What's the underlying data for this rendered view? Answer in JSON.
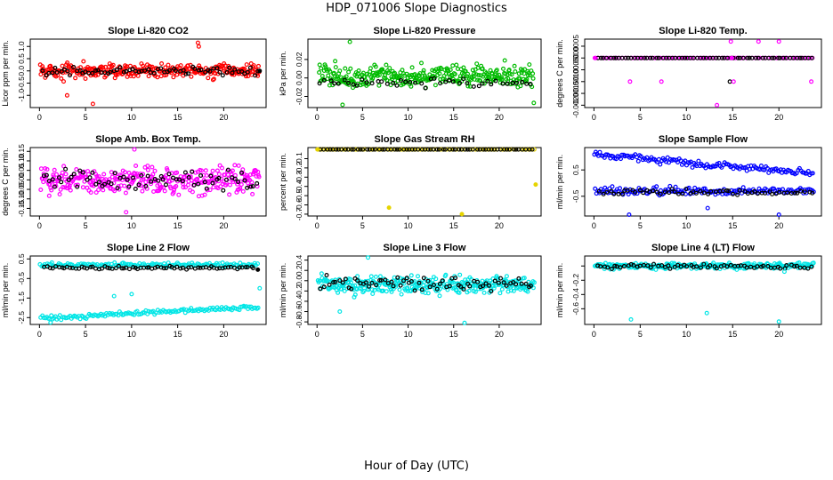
{
  "page": {
    "title": "HDP_071006  Slope Diagnostics",
    "xlabel": "Hour of Day (UTC)"
  },
  "chart_data": [
    {
      "type": "scatter",
      "title": "Slope Li-820 CO2",
      "ylabel": "Licor ppm per min.",
      "xlim": [
        -1,
        24.6
      ],
      "ylim": [
        -1.5,
        1.3
      ],
      "xticks": [
        0,
        5,
        10,
        15,
        20
      ],
      "yticks": [
        -1.0,
        -0.5,
        0.0,
        0.5,
        1.0
      ],
      "ytick_labels": [
        "-1.0",
        "-0.5",
        "0.0",
        "0.5",
        "1.0"
      ],
      "color": "#ff0000",
      "series": [
        {
          "name": "main",
          "color": "#ff0000",
          "x0": 0.05,
          "x1": 23.9,
          "n": 300,
          "bands": [
            {
              "center": 0.0,
              "spread": 0.28
            }
          ]
        },
        {
          "name": "reference",
          "color": "#000000",
          "x0": 0.2,
          "x1": 23.9,
          "n": 70,
          "bands": [
            {
              "center": 0.0,
              "spread": 0.18
            }
          ]
        }
      ],
      "points": [
        {
          "x": 5.8,
          "y": -1.35,
          "color": "#ff0000"
        },
        {
          "x": 3.0,
          "y": -1.0,
          "color": "#ff0000"
        },
        {
          "x": 17.2,
          "y": 1.15,
          "color": "#ff0000"
        },
        {
          "x": 17.3,
          "y": 1.0,
          "color": "#ff0000"
        },
        {
          "x": 23.9,
          "y": 0.0,
          "color": "#000000",
          "fill": true
        }
      ]
    },
    {
      "type": "scatter",
      "title": "Slope Li-820 Pressure",
      "ylabel": "kPa per min.",
      "xlim": [
        -1,
        24.6
      ],
      "ylim": [
        -0.032,
        0.042
      ],
      "xticks": [
        0,
        5,
        10,
        15,
        20
      ],
      "yticks": [
        -0.02,
        0.0,
        0.02
      ],
      "ytick_labels": [
        "-0.02",
        "0.00",
        "0.02"
      ],
      "color": "#00bb00",
      "series": [
        {
          "name": "main",
          "color": "#00bb00",
          "x0": 0.2,
          "x1": 23.8,
          "n": 330,
          "bands": [
            {
              "center": 0.002,
              "spread": 0.011
            }
          ]
        },
        {
          "name": "reference",
          "color": "#000000",
          "x0": 0.2,
          "x1": 23.8,
          "n": 45,
          "bands": [
            {
              "center": -0.005,
              "spread": 0.004
            }
          ]
        }
      ],
      "points": [
        {
          "x": 3.6,
          "y": 0.039,
          "color": "#00bb00"
        },
        {
          "x": 23.8,
          "y": -0.027,
          "color": "#00bb00"
        },
        {
          "x": 2.8,
          "y": -0.029,
          "color": "#00bb00"
        }
      ]
    },
    {
      "type": "scatter",
      "title": "Slope Li-820 Temp.",
      "ylabel": "degrees C per min.",
      "xlim": [
        -1,
        24.6
      ],
      "ylim": [
        -0.0021,
        0.0008
      ],
      "xticks": [
        0,
        5,
        10,
        15,
        20
      ],
      "yticks": [
        -0.002,
        -0.0015,
        -0.001,
        -0.0005,
        0.0,
        0.0005
      ],
      "ytick_labels": [
        "-0.0020",
        "-0.0015",
        "-0.0010",
        "-0.0005",
        "0.0000",
        "0.0005"
      ],
      "color": "#ff00ff",
      "series": [
        {
          "name": "main",
          "color": "#ff00ff",
          "x0": 0.05,
          "x1": 23.8,
          "n": 80,
          "bands": [
            {
              "center": 0.0,
              "spread": 0.0
            }
          ]
        },
        {
          "name": "reference",
          "color": "#000000",
          "x0": 0.3,
          "x1": 23.8,
          "n": 70,
          "bands": [
            {
              "center": 0.0,
              "spread": 0.0
            }
          ]
        }
      ],
      "points": [
        {
          "x": 3.9,
          "y": -0.001,
          "color": "#ff00ff"
        },
        {
          "x": 7.3,
          "y": -0.001,
          "color": "#ff00ff"
        },
        {
          "x": 13.3,
          "y": -0.002,
          "color": "#ff00ff"
        },
        {
          "x": 14.7,
          "y": -0.001,
          "color": "#000000"
        },
        {
          "x": 15.1,
          "y": -0.001,
          "color": "#ff00ff"
        },
        {
          "x": 14.8,
          "y": 0.0007,
          "color": "#ff00ff"
        },
        {
          "x": 17.8,
          "y": 0.0007,
          "color": "#ff00ff"
        },
        {
          "x": 20.0,
          "y": 0.0007,
          "color": "#ff00ff"
        },
        {
          "x": 23.5,
          "y": -0.001,
          "color": "#ff00ff"
        },
        {
          "x": 0.1,
          "y": 0.0,
          "color": "#ff00ff",
          "fill": true
        },
        {
          "x": 14.9,
          "y": 0.0,
          "color": "#ff00ff",
          "fill": true
        }
      ]
    },
    {
      "type": "scatter",
      "title": "Slope Amb. Box Temp.",
      "ylabel": "degrees C per min.",
      "xlim": [
        -1,
        24.6
      ],
      "ylim": [
        -0.19,
        0.17
      ],
      "xticks": [
        0,
        5,
        10,
        15,
        20
      ],
      "yticks": [
        -0.15,
        -0.1,
        -0.05,
        0.0,
        0.05,
        0.1,
        0.15
      ],
      "ytick_labels": [
        "-0.15",
        "-0.10",
        "-0.05",
        "0.00",
        "0.05",
        "0.10",
        "0.15"
      ],
      "color": "#ff00ff",
      "series": [
        {
          "name": "main",
          "color": "#ff00ff",
          "x0": 0.1,
          "x1": 23.9,
          "n": 330,
          "bands": [
            {
              "center": 0.0,
              "spread": 0.07
            }
          ]
        },
        {
          "name": "reference",
          "color": "#000000",
          "x0": 0.3,
          "x1": 23.8,
          "n": 70,
          "bands": [
            {
              "center": 0.0,
              "spread": 0.05
            }
          ]
        }
      ],
      "points": [
        {
          "x": 9.4,
          "y": -0.17,
          "color": "#ff00ff"
        },
        {
          "x": 10.3,
          "y": 0.16,
          "color": "#ff00ff"
        }
      ]
    },
    {
      "type": "scatter",
      "title": "Slope Gas Stream RH",
      "ylabel": "percent per min.",
      "xlim": [
        -1,
        24.6
      ],
      "ylim": [
        -0.72,
        0.02
      ],
      "xticks": [
        0,
        5,
        10,
        15,
        20
      ],
      "yticks": [
        -0.1,
        -0.2,
        -0.3,
        -0.4,
        -0.5,
        -0.6,
        -0.7
      ],
      "ytick_labels": [
        "-0.1",
        "-0.2",
        "-0.3",
        "-0.4",
        "-0.5",
        "-0.6",
        "-0.7"
      ],
      "color": "#ffff00",
      "series": [
        {
          "name": "main",
          "color": "#e6d400",
          "x0": 0.05,
          "x1": 24.0,
          "n": 85,
          "bands": [
            {
              "center": 0.0,
              "spread": 0.0
            }
          ]
        },
        {
          "name": "reference",
          "color": "#000000",
          "x0": 0.3,
          "x1": 23.8,
          "n": 70,
          "bands": [
            {
              "center": 0.0,
              "spread": 0.0
            }
          ]
        }
      ],
      "points": [
        {
          "x": 7.9,
          "y": -0.63,
          "color": "#e6d400",
          "fill": true
        },
        {
          "x": 15.9,
          "y": -0.7,
          "color": "#e6d400",
          "fill": true
        },
        {
          "x": 24.0,
          "y": -0.38,
          "color": "#e6d400",
          "fill": true
        },
        {
          "x": 0.05,
          "y": 0.0,
          "color": "#e6d400",
          "fill": true
        }
      ]
    },
    {
      "type": "scatter",
      "title": "Slope Sample Flow",
      "ylabel": "ml/min per min.",
      "xlim": [
        -1,
        24.6
      ],
      "ylim": [
        -1.25,
        1.35
      ],
      "xticks": [
        0,
        5,
        10,
        15,
        20
      ],
      "yticks": [
        0.5,
        -0.5
      ],
      "ytick_labels": [
        "0.5",
        "-0.5"
      ],
      "color": "#0000ff",
      "series": [
        {
          "name": "main",
          "color": "#0000ff",
          "x0": 0.0,
          "x1": 23.8,
          "n": 300,
          "bands": [
            {
              "center": 1.1,
              "center_end": 0.35,
              "spread": 0.12
            },
            {
              "center": -0.3,
              "spread": 0.15
            }
          ]
        },
        {
          "name": "reference",
          "color": "#000000",
          "x0": 0.5,
          "x1": 23.9,
          "n": 60,
          "bands": [
            {
              "center": -0.35,
              "spread": 0.1
            }
          ]
        }
      ],
      "points": [
        {
          "x": 3.8,
          "y": -1.2,
          "color": "#0000ff"
        },
        {
          "x": 20.0,
          "y": -1.2,
          "color": "#0000ff"
        },
        {
          "x": 12.3,
          "y": -0.95,
          "color": "#0000ff"
        }
      ]
    },
    {
      "type": "scatter",
      "title": "Slope Line 2 Flow",
      "ylabel": "ml/min per min.",
      "xlim": [
        -1,
        24.6
      ],
      "ylim": [
        -2.85,
        0.65
      ],
      "xticks": [
        0,
        5,
        10,
        15,
        20
      ],
      "yticks": [
        0.5,
        -0.5,
        -1.5,
        -2.5
      ],
      "ytick_labels": [
        "0.5",
        "-0.5",
        "-1.5",
        "-2.5"
      ],
      "color": "#00e6e6",
      "series": [
        {
          "name": "main",
          "color": "#00e6e6",
          "x0": 0.05,
          "x1": 23.8,
          "n": 300,
          "bands": [
            {
              "center": 0.2,
              "spread": 0.1
            },
            {
              "center": -2.55,
              "center_end": -1.95,
              "spread": 0.12
            }
          ]
        },
        {
          "name": "reference",
          "color": "#000000",
          "x0": 0.5,
          "x1": 23.5,
          "n": 75,
          "bands": [
            {
              "center": 0.05,
              "spread": 0.08
            }
          ]
        }
      ],
      "points": [
        {
          "x": 8.1,
          "y": -1.4,
          "color": "#00e6e6"
        },
        {
          "x": 10.0,
          "y": -1.3,
          "color": "#00e6e6"
        },
        {
          "x": 1.2,
          "y": -2.75,
          "color": "#00e6e6"
        },
        {
          "x": 23.9,
          "y": -1.0,
          "color": "#00e6e6"
        },
        {
          "x": 23.7,
          "y": -0.05,
          "color": "#000000",
          "fill": true
        }
      ]
    },
    {
      "type": "scatter",
      "title": "Slope Line 3 Flow",
      "ylabel": "ml/min per min.",
      "xlim": [
        -1,
        24.6
      ],
      "ylim": [
        -0.85,
        0.48
      ],
      "xticks": [
        0,
        5,
        10,
        15,
        20
      ],
      "yticks": [
        0.4,
        0.2,
        0.0,
        -0.2,
        -0.4,
        -0.6,
        -0.8
      ],
      "ytick_labels": [
        "0.4",
        "0.2",
        "0.0",
        "-0.2",
        "-0.4",
        "-0.6",
        "-0.8"
      ],
      "color": "#00e6e6",
      "series": [
        {
          "name": "main",
          "color": "#00e6e6",
          "x0": 0.1,
          "x1": 23.9,
          "n": 330,
          "bands": [
            {
              "center": -0.08,
              "spread": 0.16
            }
          ]
        },
        {
          "name": "reference",
          "color": "#000000",
          "x0": 0.3,
          "x1": 23.8,
          "n": 70,
          "bands": [
            {
              "center": -0.05,
              "spread": 0.12
            }
          ]
        }
      ],
      "points": [
        {
          "x": 5.6,
          "y": 0.45,
          "color": "#00e6e6"
        },
        {
          "x": 2.5,
          "y": -0.6,
          "color": "#00e6e6"
        },
        {
          "x": 16.2,
          "y": -0.82,
          "color": "#00e6e6"
        }
      ]
    },
    {
      "type": "scatter",
      "title": "Slope Line 4 (LT) Flow",
      "ylabel": "ml/min per min.",
      "xlim": [
        -1,
        24.6
      ],
      "ylim": [
        -0.82,
        0.14
      ],
      "xticks": [
        0,
        5,
        10,
        15,
        20
      ],
      "yticks": [
        0.0,
        -0.2,
        -0.4,
        -0.6
      ],
      "ytick_labels": [
        "",
        "-0.2",
        "-0.4",
        "-0.6"
      ],
      "color": "#00e6e6",
      "series": [
        {
          "name": "main",
          "color": "#00e6e6",
          "x0": 0.1,
          "x1": 23.8,
          "n": 260,
          "bands": [
            {
              "center": 0.0,
              "spread": 0.04
            }
          ]
        },
        {
          "name": "reference",
          "color": "#000000",
          "x0": 0.3,
          "x1": 23.7,
          "n": 65,
          "bands": [
            {
              "center": -0.01,
              "spread": 0.035
            }
          ]
        }
      ],
      "points": [
        {
          "x": 4.0,
          "y": -0.75,
          "color": "#00e6e6"
        },
        {
          "x": 20.0,
          "y": -0.78,
          "color": "#00e6e6"
        },
        {
          "x": 12.2,
          "y": -0.66,
          "color": "#00e6e6"
        },
        {
          "x": 20.6,
          "y": -0.08,
          "color": "#00e6e6"
        }
      ]
    }
  ]
}
